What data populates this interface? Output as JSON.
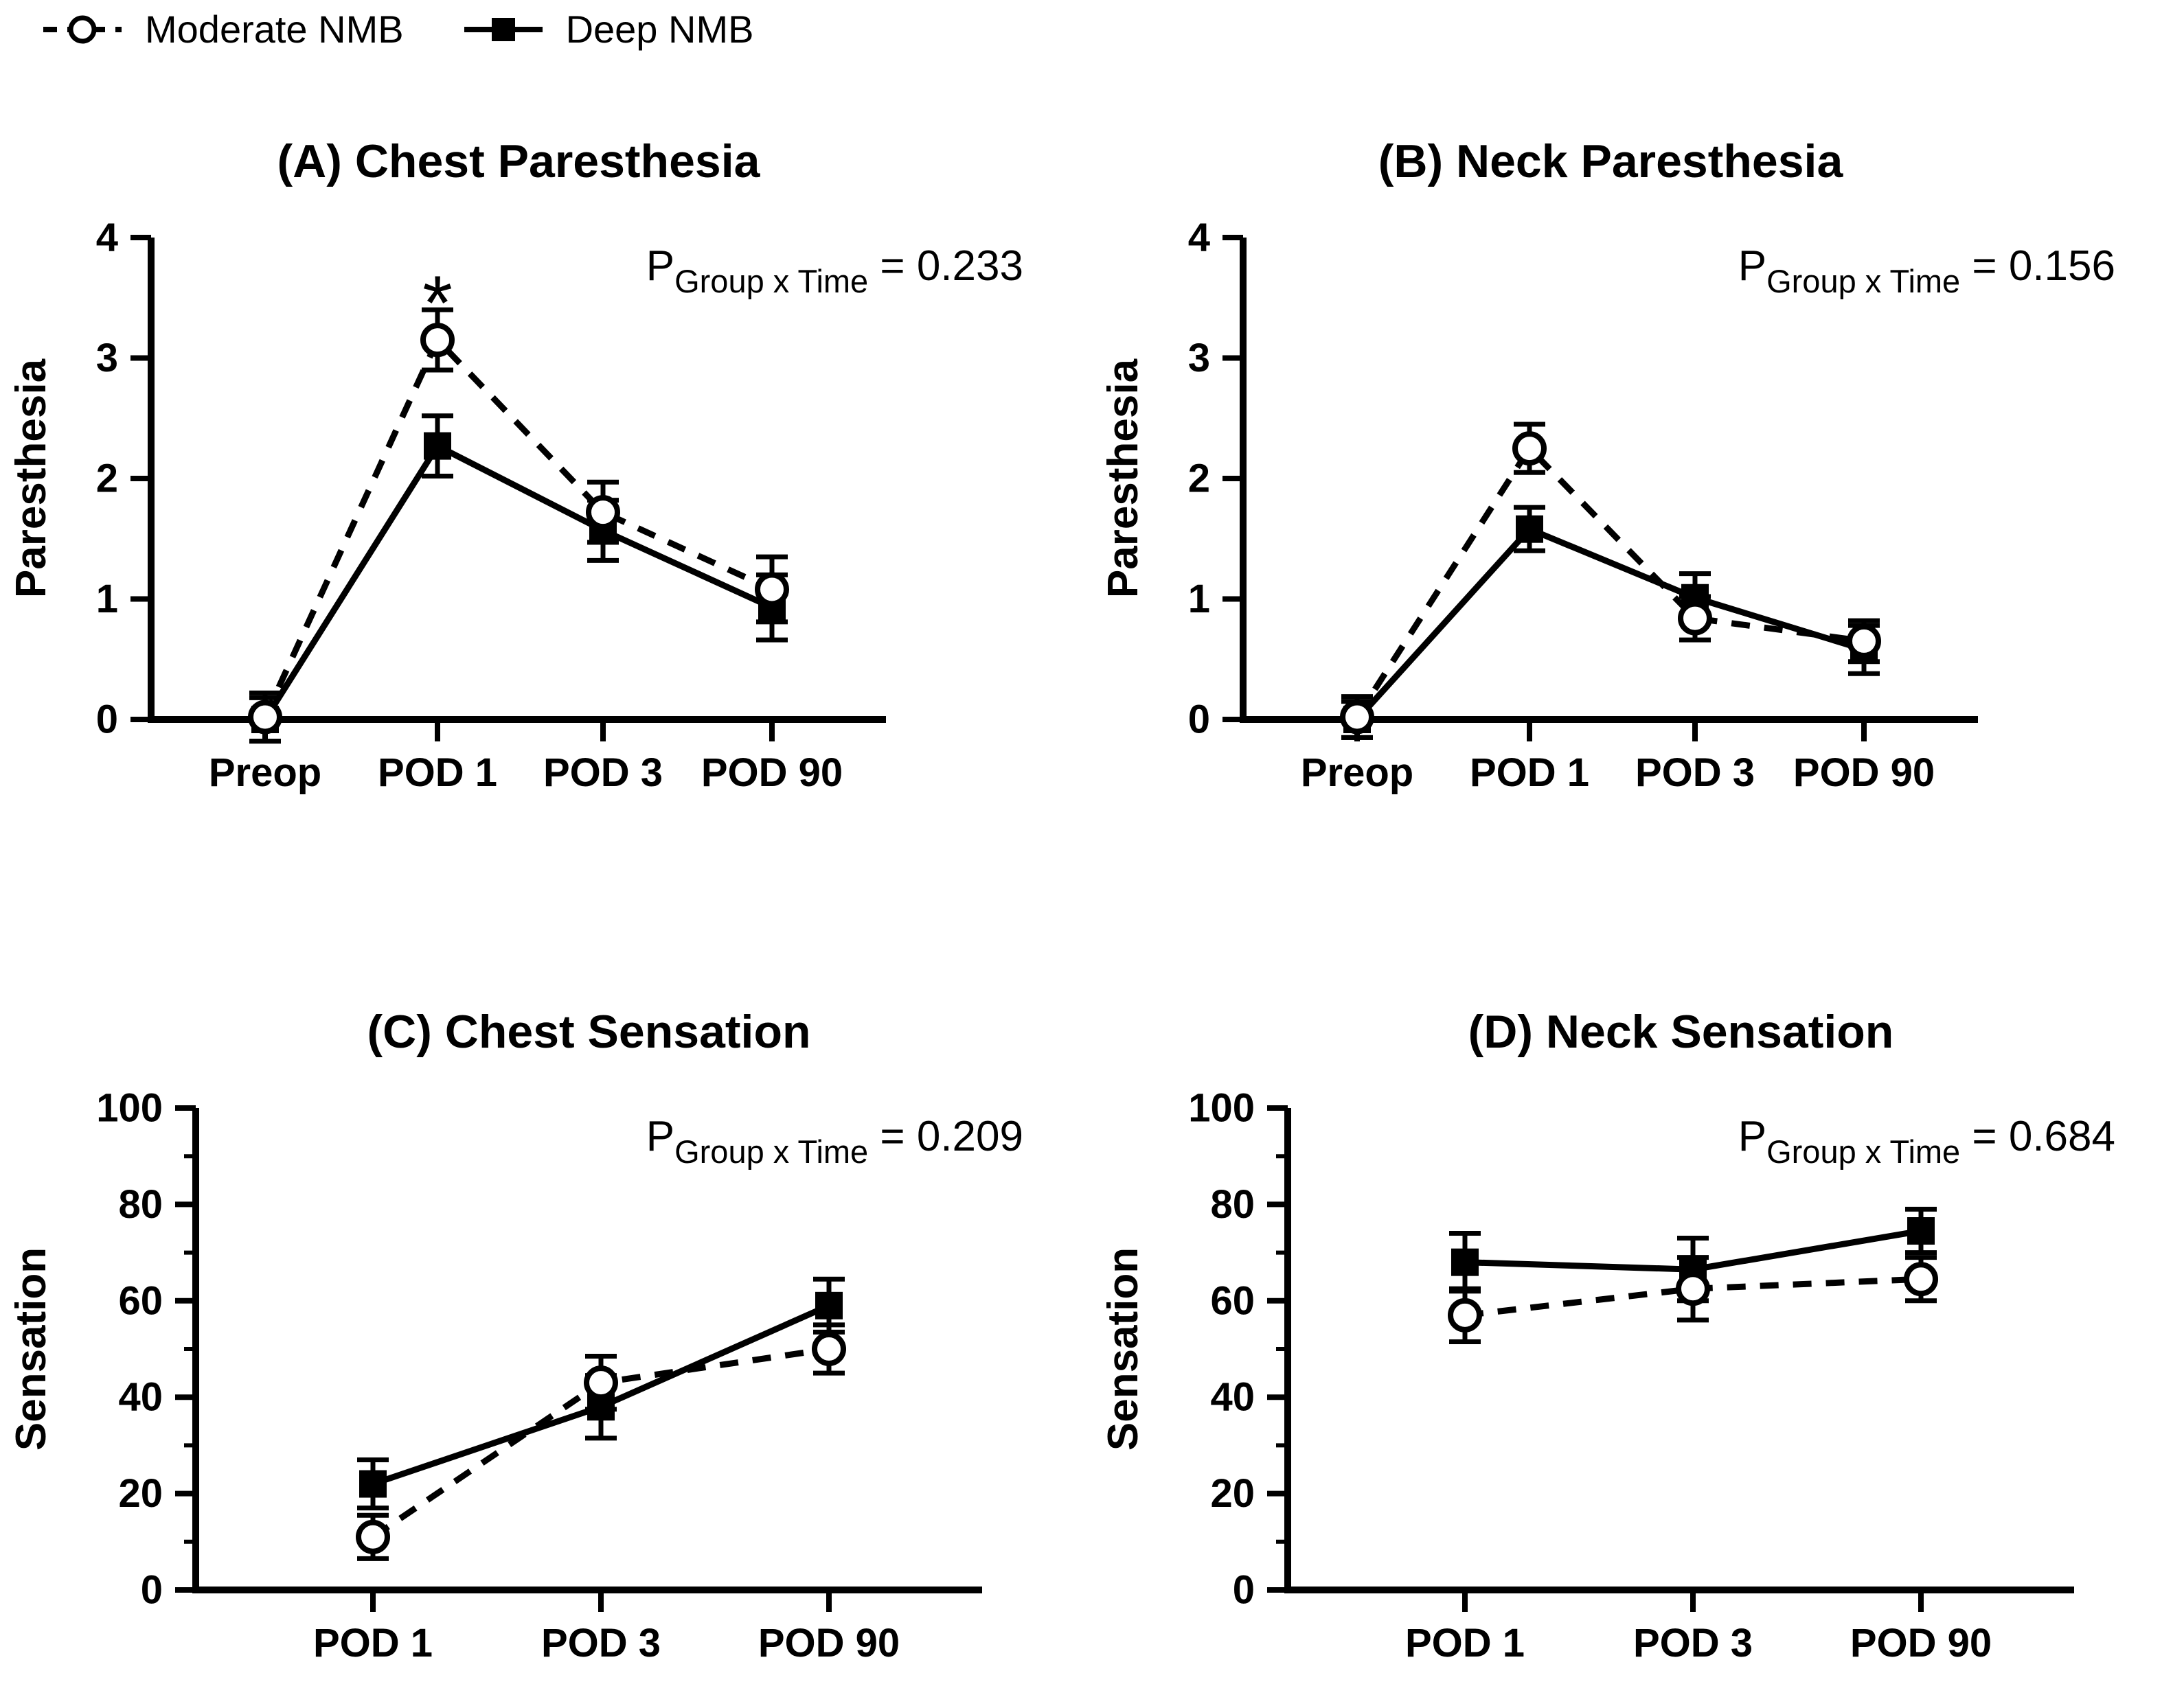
{
  "figure": {
    "foreground_color": "#000000",
    "background_color": "#ffffff"
  },
  "legend": {
    "items": [
      {
        "label": "Moderate NMB",
        "marker": "open-circle",
        "line": "dashed"
      },
      {
        "label": "Deep NMB",
        "marker": "filled-square",
        "line": "solid"
      }
    ]
  },
  "chart_data": [
    {
      "panel": "A",
      "type": "line",
      "title": "(A) Chest Paresthesia",
      "ylabel": "Paresthesia",
      "p_stat": {
        "symbol": "P",
        "subscript": "Group x Time",
        "value": "= 0.233"
      },
      "categories": [
        "Preop",
        "POD 1",
        "POD 3",
        "POD 90"
      ],
      "ylim": [
        0,
        4
      ],
      "yticks": [
        0,
        1,
        2,
        3,
        4
      ],
      "yticks_minor": [],
      "annotations": [
        {
          "symbol": "*",
          "category": "POD 1"
        }
      ],
      "series": [
        {
          "name": "Moderate NMB",
          "marker": "open-circle",
          "line": "dashed",
          "values": [
            0.02,
            3.15,
            1.72,
            1.08
          ],
          "errors": [
            0.2,
            0.25,
            0.25,
            0.27
          ]
        },
        {
          "name": "Deep NMB",
          "marker": "filled-square",
          "line": "solid",
          "values": [
            0.0,
            2.27,
            1.57,
            0.93
          ],
          "errors": [
            0.18,
            0.25,
            0.25,
            0.27
          ]
        }
      ]
    },
    {
      "panel": "B",
      "type": "line",
      "title": "(B) Neck Paresthesia",
      "ylabel": "Paresthesia",
      "p_stat": {
        "symbol": "P",
        "subscript": "Group x Time",
        "value": "= 0.156"
      },
      "categories": [
        "Preop",
        "POD 1",
        "POD 3",
        "POD 90"
      ],
      "ylim": [
        0,
        4
      ],
      "yticks": [
        0,
        1,
        2,
        3,
        4
      ],
      "yticks_minor": [],
      "annotations": [],
      "series": [
        {
          "name": "Moderate NMB",
          "marker": "open-circle",
          "line": "dashed",
          "values": [
            0.02,
            2.25,
            0.84,
            0.65
          ],
          "errors": [
            0.17,
            0.2,
            0.18,
            0.17
          ]
        },
        {
          "name": "Deep NMB",
          "marker": "filled-square",
          "line": "solid",
          "values": [
            0.0,
            1.58,
            1.01,
            0.58
          ],
          "errors": [
            0.15,
            0.18,
            0.2,
            0.2
          ]
        }
      ]
    },
    {
      "panel": "C",
      "type": "line",
      "title": "(C) Chest Sensation",
      "ylabel": "Sensation",
      "p_stat": {
        "symbol": "P",
        "subscript": "Group x Time",
        "value": "= 0.209"
      },
      "categories": [
        "POD 1",
        "POD 3",
        "POD 90"
      ],
      "ylim": [
        0,
        100
      ],
      "yticks": [
        0,
        20,
        40,
        60,
        80,
        100
      ],
      "yticks_minor": [
        10,
        30,
        50,
        70,
        90
      ],
      "annotations": [],
      "series": [
        {
          "name": "Moderate NMB",
          "marker": "open-circle",
          "line": "dashed",
          "values": [
            11,
            43,
            50
          ],
          "errors": [
            4.5,
            5.5,
            5.0
          ]
        },
        {
          "name": "Deep NMB",
          "marker": "filled-square",
          "line": "solid",
          "values": [
            22,
            38,
            59
          ],
          "errors": [
            5.0,
            6.5,
            5.5
          ]
        }
      ]
    },
    {
      "panel": "D",
      "type": "line",
      "title": "(D) Neck Sensation",
      "ylabel": "Sensation",
      "p_stat": {
        "symbol": "P",
        "subscript": "Group x Time",
        "value": "= 0.684"
      },
      "categories": [
        "POD 1",
        "POD 3",
        "POD 90"
      ],
      "ylim": [
        0,
        100
      ],
      "yticks": [
        0,
        20,
        40,
        60,
        80,
        100
      ],
      "yticks_minor": [
        10,
        30,
        50,
        70,
        90
      ],
      "annotations": [],
      "series": [
        {
          "name": "Moderate NMB",
          "marker": "open-circle",
          "line": "dashed",
          "values": [
            57,
            62.5,
            64.5
          ],
          "errors": [
            5.5,
            6.5,
            4.5
          ]
        },
        {
          "name": "Deep NMB",
          "marker": "filled-square",
          "line": "solid",
          "values": [
            68,
            66.5,
            74.5
          ],
          "errors": [
            6.0,
            6.5,
            4.5
          ]
        }
      ]
    }
  ]
}
